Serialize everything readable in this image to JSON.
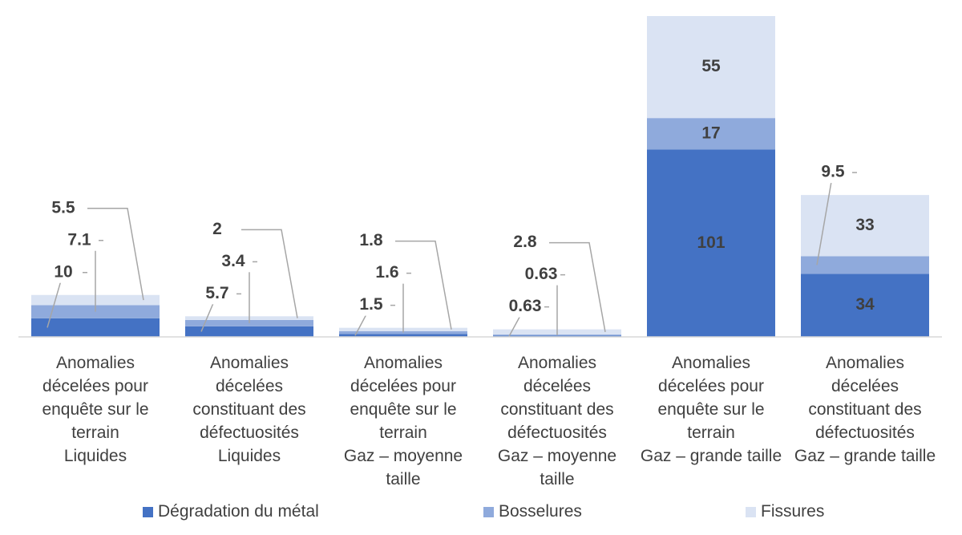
{
  "chart_data": {
    "type": "stacked_bar",
    "categories": [
      "Anomalies décelées pour enquête sur le terrain\nLiquides",
      "Anomalies décelées constituant des défectuosités\nLiquides",
      "Anomalies décelées pour enquête sur le terrain\nGaz – moyenne taille",
      "Anomalies décelées constituant des défectuosités\nGaz – moyenne taille",
      "Anomalies décelées pour enquête sur le terrain\nGaz – grande taille",
      "Anomalies décelées constituant des défectuosités\nGaz – grande taille"
    ],
    "series": [
      {
        "name": "Dégradation du métal",
        "color": "#4472c4",
        "values": [
          10,
          5.7,
          1.5,
          0.63,
          101,
          34
        ]
      },
      {
        "name": "Bosselures",
        "color": "#8faadc",
        "values": [
          7.1,
          3.4,
          1.6,
          0.63,
          17,
          9.5
        ]
      },
      {
        "name": "Fissures",
        "color": "#dae3f3",
        "values": [
          5.5,
          2,
          1.8,
          2.8,
          55,
          33
        ]
      }
    ],
    "ylim": [
      0,
      173
    ]
  }
}
